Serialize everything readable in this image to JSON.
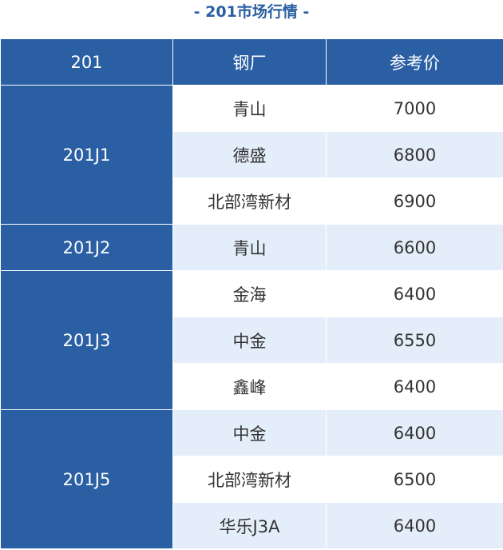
{
  "title": "- 201市场行情 -",
  "headers": [
    "201",
    "钢厂",
    "参考价"
  ],
  "groups": [
    {
      "grade": "201J1",
      "rows": [
        {
          "mill": "青山",
          "price": "7000"
        },
        {
          "mill": "德盛",
          "price": "6800"
        },
        {
          "mill": "北部湾新材",
          "price": "6900"
        }
      ]
    },
    {
      "grade": "201J2",
      "rows": [
        {
          "mill": "青山",
          "price": "6600"
        }
      ]
    },
    {
      "grade": "201J3",
      "rows": [
        {
          "mill": "金海",
          "price": "6400"
        },
        {
          "mill": "中金",
          "price": "6550"
        },
        {
          "mill": "鑫峰",
          "price": "6400"
        }
      ]
    },
    {
      "grade": "201J5",
      "rows": [
        {
          "mill": "中金",
          "price": "6400"
        },
        {
          "mill": "北部湾新材",
          "price": "6500"
        },
        {
          "mill": "华乐J3A",
          "price": "6400"
        }
      ]
    }
  ],
  "colors": {
    "header_blue": "#2b5fa3",
    "alt_row": "#e3eefa"
  }
}
